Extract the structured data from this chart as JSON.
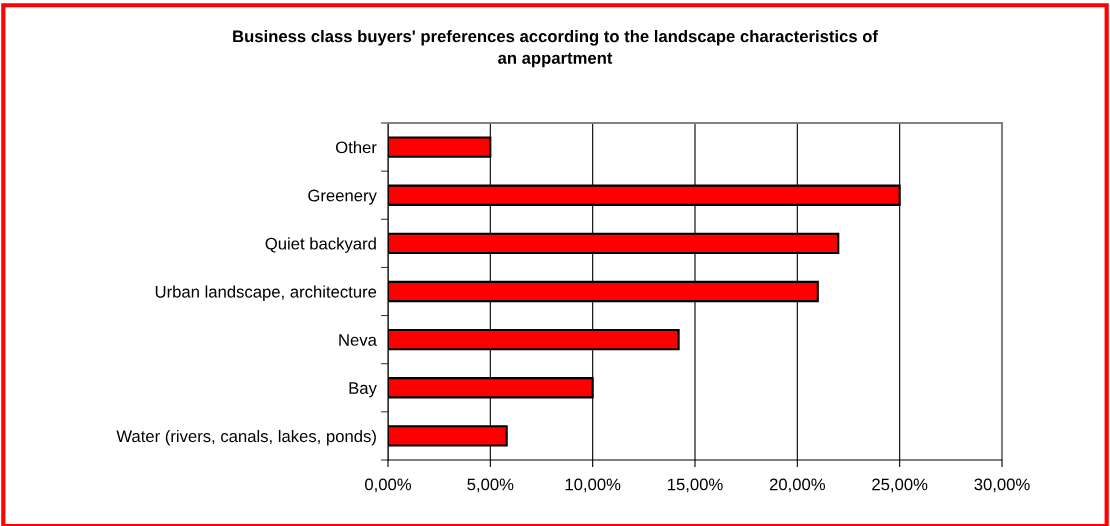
{
  "chart_data": {
    "type": "bar",
    "orientation": "horizontal",
    "title": "Business class buyers' preferences according to the landscape characteristics of\nan appartment",
    "categories": [
      "Other",
      "Greenery",
      "Quiet backyard",
      "Urban landscape, architecture",
      "Neva",
      "Bay",
      "Water (rivers, canals, lakes, ponds)"
    ],
    "values": [
      5.0,
      25.0,
      22.0,
      21.0,
      14.2,
      10.0,
      5.8
    ],
    "color": "#ff0000",
    "xlim": [
      0,
      30
    ],
    "xticks": [
      {
        "value": 0,
        "label": "0,00%"
      },
      {
        "value": 5,
        "label": "5,00%"
      },
      {
        "value": 10,
        "label": "10,00%"
      },
      {
        "value": 15,
        "label": "15,00%"
      },
      {
        "value": 20,
        "label": "20,00%"
      },
      {
        "value": 25,
        "label": "25,00%"
      },
      {
        "value": 30,
        "label": "30,00%"
      }
    ],
    "grid": "x",
    "legend": false
  }
}
